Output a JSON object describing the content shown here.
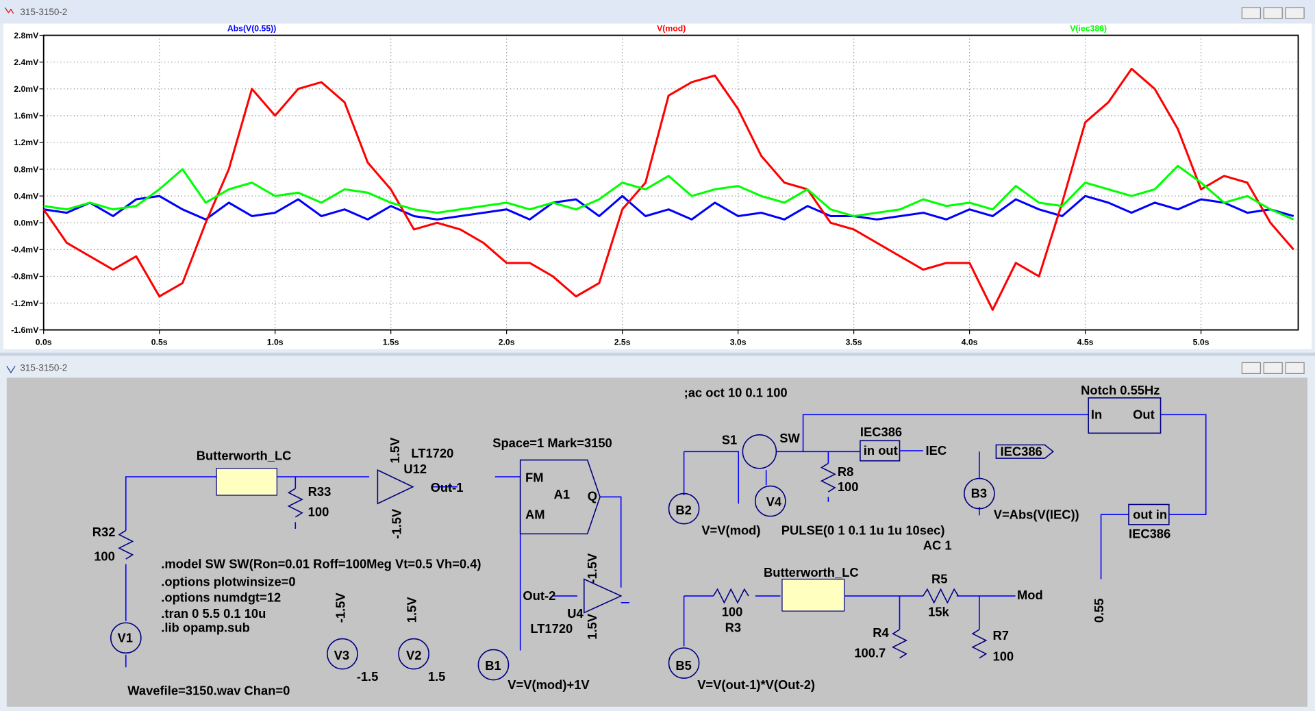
{
  "plot_window": {
    "title": "315-3150-2"
  },
  "chart_data": {
    "type": "line",
    "x": [
      0,
      0.1,
      0.2,
      0.3,
      0.4,
      0.5,
      0.6,
      0.7,
      0.8,
      0.9,
      1.0,
      1.1,
      1.2,
      1.3,
      1.4,
      1.5,
      1.6,
      1.7,
      1.8,
      1.9,
      2.0,
      2.1,
      2.2,
      2.3,
      2.4,
      2.5,
      2.6,
      2.7,
      2.8,
      2.9,
      3.0,
      3.1,
      3.2,
      3.3,
      3.4,
      3.5,
      3.6,
      3.7,
      3.8,
      3.9,
      4.0,
      4.1,
      4.2,
      4.3,
      4.4,
      4.5,
      4.6,
      4.7,
      4.8,
      4.9,
      5.0,
      5.1,
      5.2,
      5.3,
      5.4
    ],
    "series": [
      {
        "name": "Abs(V(0.55))",
        "color": "#0000ff",
        "values": [
          0.2,
          0.15,
          0.3,
          0.1,
          0.35,
          0.4,
          0.2,
          0.05,
          0.3,
          0.1,
          0.15,
          0.35,
          0.1,
          0.2,
          0.05,
          0.25,
          0.1,
          0.05,
          0.1,
          0.15,
          0.2,
          0.05,
          0.3,
          0.35,
          0.1,
          0.4,
          0.1,
          0.2,
          0.05,
          0.3,
          0.1,
          0.15,
          0.05,
          0.25,
          0.1,
          0.1,
          0.05,
          0.1,
          0.15,
          0.05,
          0.2,
          0.1,
          0.35,
          0.2,
          0.1,
          0.4,
          0.3,
          0.15,
          0.3,
          0.2,
          0.35,
          0.3,
          0.15,
          0.2,
          0.1
        ]
      },
      {
        "name": "V(mod)",
        "color": "#ff0000",
        "values": [
          0.2,
          -0.3,
          -0.5,
          -0.7,
          -0.5,
          -1.1,
          -0.9,
          0.0,
          0.8,
          2.0,
          1.6,
          2.0,
          2.1,
          1.8,
          0.9,
          0.5,
          -0.1,
          0.0,
          -0.1,
          -0.3,
          -0.6,
          -0.6,
          -0.8,
          -1.1,
          -0.9,
          0.2,
          0.6,
          1.9,
          2.1,
          2.2,
          1.7,
          1.0,
          0.6,
          0.5,
          0.0,
          -0.1,
          -0.3,
          -0.5,
          -0.7,
          -0.6,
          -0.6,
          -1.3,
          -0.6,
          -0.8,
          0.3,
          1.5,
          1.8,
          2.3,
          2.0,
          1.4,
          0.5,
          0.7,
          0.6,
          0.0,
          -0.4
        ]
      },
      {
        "name": "V(iec386)",
        "color": "#00ff00",
        "values": [
          0.25,
          0.2,
          0.3,
          0.2,
          0.25,
          0.5,
          0.8,
          0.3,
          0.5,
          0.6,
          0.4,
          0.45,
          0.3,
          0.5,
          0.45,
          0.3,
          0.2,
          0.15,
          0.2,
          0.25,
          0.3,
          0.2,
          0.3,
          0.2,
          0.35,
          0.6,
          0.5,
          0.7,
          0.4,
          0.5,
          0.55,
          0.4,
          0.3,
          0.5,
          0.2,
          0.1,
          0.15,
          0.2,
          0.35,
          0.25,
          0.3,
          0.2,
          0.55,
          0.3,
          0.25,
          0.6,
          0.5,
          0.4,
          0.5,
          0.85,
          0.6,
          0.3,
          0.4,
          0.2,
          0.05
        ]
      }
    ],
    "xlim": [
      0,
      5.42
    ],
    "xticks": [
      {
        "value": 0,
        "label": "0.0s"
      },
      {
        "value": 0.5,
        "label": "0.5s"
      },
      {
        "value": 1.0,
        "label": "1.0s"
      },
      {
        "value": 1.5,
        "label": "1.5s"
      },
      {
        "value": 2.0,
        "label": "2.0s"
      },
      {
        "value": 2.5,
        "label": "2.5s"
      },
      {
        "value": 3.0,
        "label": "3.0s"
      },
      {
        "value": 3.5,
        "label": "3.5s"
      },
      {
        "value": 4.0,
        "label": "4.0s"
      },
      {
        "value": 4.5,
        "label": "4.5s"
      },
      {
        "value": 5.0,
        "label": "5.0s"
      }
    ],
    "ylim": [
      -1.6,
      2.8
    ],
    "yticks": [
      {
        "value": -1.6,
        "label": "-1.6mV"
      },
      {
        "value": -1.2,
        "label": "-1.2mV"
      },
      {
        "value": -0.8,
        "label": "-0.8mV"
      },
      {
        "value": -0.4,
        "label": "-0.4mV"
      },
      {
        "value": 0,
        "label": "0.0mV"
      },
      {
        "value": 0.4,
        "label": "0.4mV"
      },
      {
        "value": 0.8,
        "label": "0.8mV"
      },
      {
        "value": 1.2,
        "label": "1.2mV"
      },
      {
        "value": 1.6,
        "label": "1.6mV"
      },
      {
        "value": 2.0,
        "label": "2.0mV"
      },
      {
        "value": 2.4,
        "label": "2.4mV"
      },
      {
        "value": 2.8,
        "label": "2.8mV"
      }
    ],
    "grid": true
  },
  "schematic_window": {
    "title": "315-3150-2",
    "texts": [
      ";ac oct 10 0.1 100",
      "Notch 0.55Hz",
      "In",
      "Out",
      "S1",
      "SW",
      "IEC386",
      "in out",
      "IEC",
      "IEC386",
      "R8",
      "100",
      "B3",
      "V=Abs(V(IEC))",
      "V4",
      "B2",
      "V=V(mod)",
      "PULSE(0 1 0.1 1u 1u 10sec)",
      "AC 1",
      "out in",
      "IEC386",
      "0.55",
      "Space=1 Mark=3150",
      "FM",
      "A1",
      "Q",
      "AM",
      "Butterworth_LC",
      "LT1720",
      "U12",
      "1.5V",
      "Out-1",
      "-1.5V",
      "R33",
      "100",
      "R32",
      "100",
      ".model SW SW(Ron=0.01 Roff=100Meg Vt=0.5 Vh=0.4)",
      ".options plotwinsize=0",
      ".options numdgt=12",
      ".tran 0 5.5 0.1 10u",
      ".lib opamp.sub",
      "V1",
      "V3",
      "-1.5",
      "-1.5V",
      "V2",
      "1.5",
      "1.5V",
      "Wavefile=3150.wav Chan=0",
      "-1.5V",
      "Out-2",
      "U4",
      "LT1720",
      "1.5V",
      "B1",
      "V=V(mod)+1V",
      "Butterworth_LC",
      "R5",
      "Mod",
      "100",
      "R3",
      "15k",
      "R4",
      "100.7",
      "R7",
      "100",
      "B5",
      "V=V(out-1)*V(Out-2)"
    ]
  }
}
